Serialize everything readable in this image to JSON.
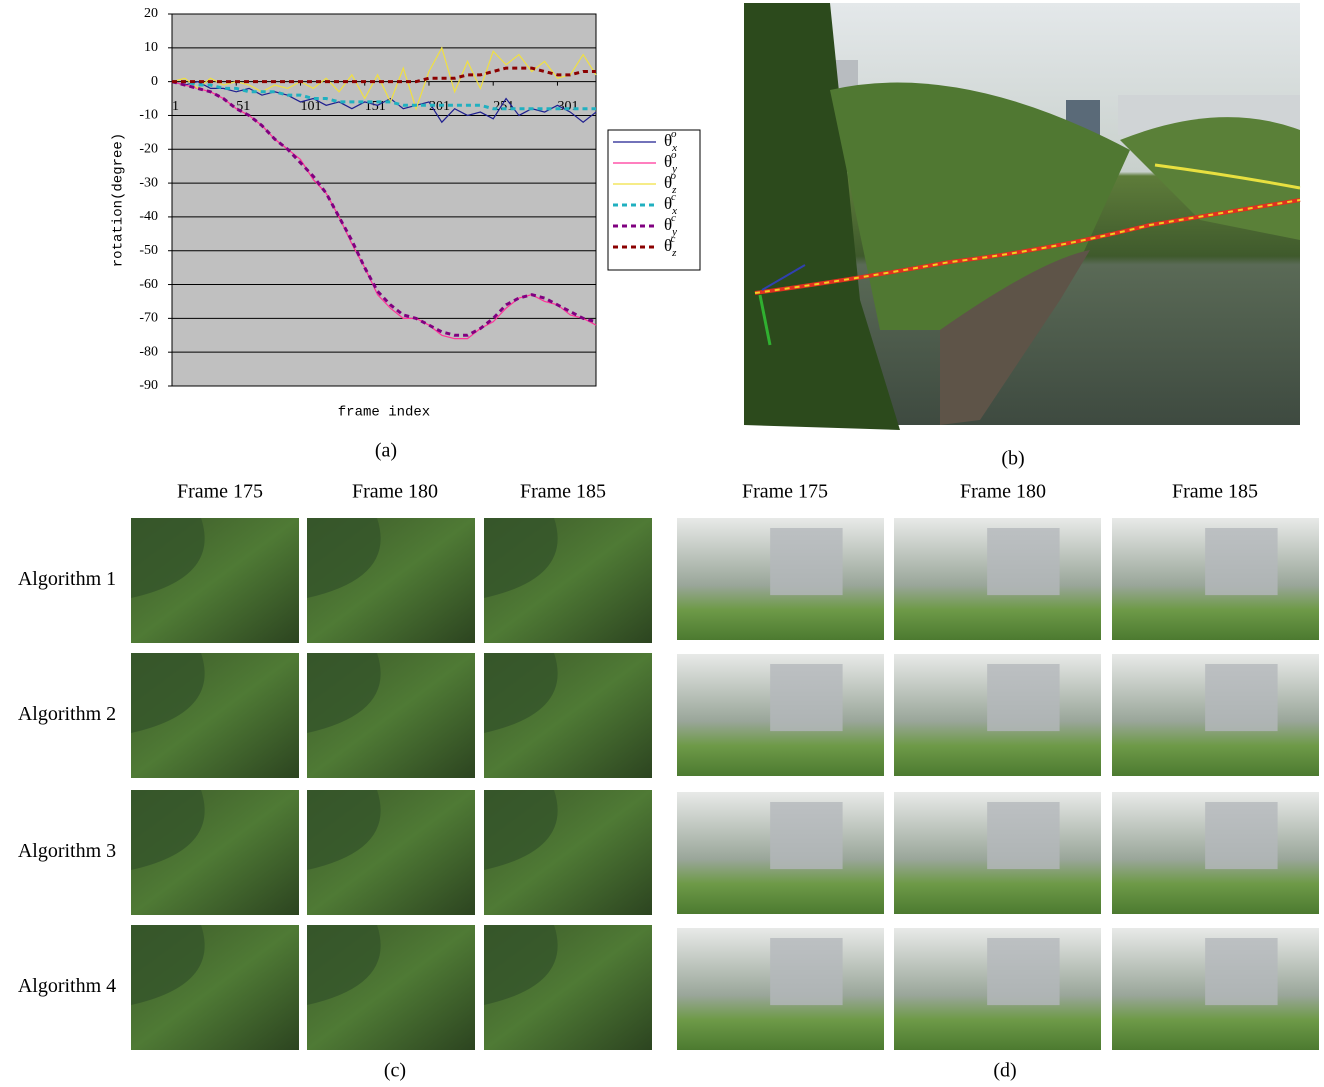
{
  "chart_data": {
    "type": "line",
    "y_label": "rotation(degree)",
    "x_label": "frame index",
    "x": [
      1,
      11,
      21,
      31,
      41,
      51,
      61,
      71,
      81,
      91,
      101,
      111,
      121,
      131,
      141,
      151,
      161,
      171,
      181,
      191,
      201,
      211,
      221,
      231,
      241,
      251,
      261,
      271,
      281,
      291,
      301,
      311,
      321,
      331
    ],
    "xlim": [
      1,
      331
    ],
    "xticks": [
      1,
      51,
      101,
      151,
      201,
      251,
      301
    ],
    "ylim": [
      -90,
      20
    ],
    "yticks": [
      -90,
      -80,
      -70,
      -60,
      -50,
      -40,
      -30,
      -20,
      -10,
      0,
      10,
      20
    ],
    "grid": true,
    "background": "#c0c0c0",
    "legend": "right",
    "series": [
      {
        "name": "θ",
        "sub": "x",
        "sup": "o",
        "color": "#1f1f8f",
        "dashed": false,
        "values": [
          0,
          -1,
          0,
          -2,
          -2,
          -3,
          -2,
          -4,
          -3,
          -4,
          -6,
          -5,
          -7,
          -6,
          -8,
          -6,
          -7,
          -5,
          -8,
          -7,
          -6,
          -12,
          -8,
          -10,
          -9,
          -11,
          -5,
          -10,
          -8,
          -9,
          -7,
          -9,
          -12,
          -9
        ]
      },
      {
        "name": "θ",
        "sub": "y",
        "sup": "o",
        "color": "#ff3399",
        "dashed": false,
        "values": [
          0,
          -1,
          -2,
          -3,
          -5,
          -8,
          -10,
          -13,
          -17,
          -20,
          -23,
          -29,
          -33,
          -40,
          -48,
          -55,
          -63,
          -67,
          -70,
          -70,
          -72,
          -75,
          -76,
          -76,
          -73,
          -71,
          -67,
          -64,
          -63,
          -65,
          -66,
          -69,
          -70,
          -72
        ]
      },
      {
        "name": "θ",
        "sub": "z",
        "sup": "o",
        "color": "#f0e040",
        "dashed": false,
        "values": [
          0,
          1,
          -2,
          1,
          -1,
          0,
          -1,
          -3,
          -1,
          -2,
          0,
          -2,
          1,
          -3,
          2,
          -5,
          2,
          -6,
          4,
          -8,
          3,
          10,
          -3,
          6,
          -2,
          9,
          5,
          8,
          3,
          6,
          1,
          2,
          8,
          2
        ]
      },
      {
        "name": "θ",
        "sub": "x",
        "sup": "c",
        "color": "#20b0c0",
        "dashed": true,
        "values": [
          0,
          0,
          -1,
          -1,
          -2,
          -2,
          -3,
          -3,
          -3,
          -4,
          -4,
          -5,
          -5,
          -6,
          -6,
          -6,
          -6,
          -6,
          -7,
          -7,
          -7,
          -7,
          -7,
          -7,
          -7,
          -8,
          -8,
          -8,
          -8,
          -8,
          -8,
          -8,
          -8,
          -8
        ]
      },
      {
        "name": "θ",
        "sub": "y",
        "sup": "c",
        "color": "#800080",
        "dashed": true,
        "values": [
          0,
          -1,
          -2,
          -3,
          -5,
          -8,
          -10,
          -13,
          -17,
          -20,
          -24,
          -28,
          -33,
          -40,
          -47,
          -55,
          -62,
          -66,
          -69,
          -70,
          -72,
          -74,
          -75,
          -75,
          -73,
          -70,
          -66,
          -64,
          -63,
          -64,
          -66,
          -68,
          -70,
          -71
        ]
      },
      {
        "name": "θ",
        "sub": "z",
        "sup": "c",
        "color": "#8b0000",
        "dashed": true,
        "values": [
          0,
          0,
          0,
          0,
          0,
          0,
          0,
          0,
          0,
          0,
          0,
          0,
          0,
          0,
          0,
          0,
          0,
          0,
          0,
          0,
          1,
          1,
          1,
          2,
          2,
          3,
          4,
          4,
          4,
          3,
          2,
          2,
          3,
          3
        ]
      }
    ]
  },
  "panels": {
    "a": {
      "caption": "(a)"
    },
    "b": {
      "caption": "(b)"
    },
    "c": {
      "caption": "(c)",
      "columns": [
        "Frame 175",
        "Frame 180",
        "Frame 185"
      ],
      "rows": [
        "Algorithm 1",
        "Algorithm 2",
        "Algorithm 3",
        "Algorithm 4"
      ]
    },
    "d": {
      "caption": "(d)",
      "columns": [
        "Frame 175",
        "Frame 180",
        "Frame 185"
      ]
    }
  }
}
